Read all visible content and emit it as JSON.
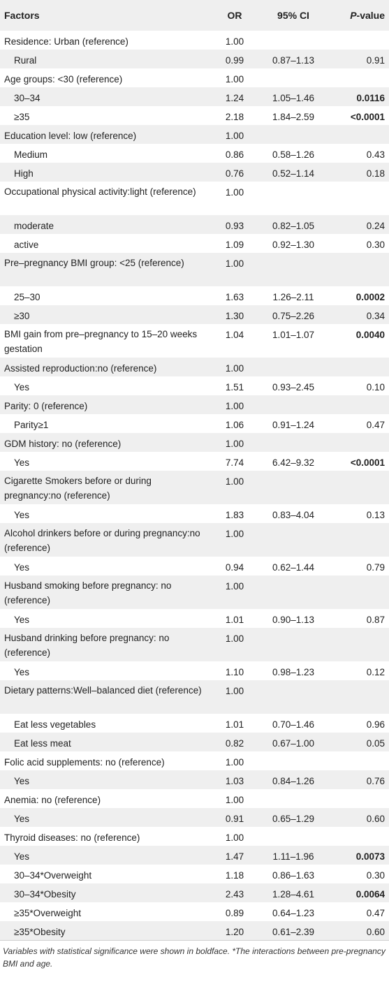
{
  "header": {
    "factors": "Factors",
    "or": "OR",
    "ci": "95% CI",
    "p_italic": "P",
    "p_rest": "-value"
  },
  "rows": [
    {
      "f": "Residence: Urban (reference)",
      "or": "1.00",
      "ci": "",
      "p": "",
      "sub": false,
      "bold": false
    },
    {
      "f": "Rural",
      "or": "0.99",
      "ci": "0.87–1.13",
      "p": "0.91",
      "sub": true,
      "bold": false
    },
    {
      "f": "Age groups: <30 (reference)",
      "or": "1.00",
      "ci": "",
      "p": "",
      "sub": false,
      "bold": false
    },
    {
      "f": "30–34",
      "or": "1.24",
      "ci": "1.05–1.46",
      "p": "0.0116",
      "sub": true,
      "bold": true
    },
    {
      "f": "≥35",
      "or": "2.18",
      "ci": "1.84–2.59",
      "p": "<0.0001",
      "sub": true,
      "bold": true
    },
    {
      "f": "Education level: low (reference)",
      "or": "1.00",
      "ci": "",
      "p": "",
      "sub": false,
      "bold": false
    },
    {
      "f": "Medium",
      "or": "0.86",
      "ci": "0.58–1.26",
      "p": "0.43",
      "sub": true,
      "bold": false
    },
    {
      "f": "High",
      "or": "0.76",
      "ci": "0.52–1.14",
      "p": "0.18",
      "sub": true,
      "bold": false
    },
    {
      "f": "Occupational physical activity:light (reference)",
      "or": "1.00",
      "ci": "",
      "p": "",
      "sub": false,
      "bold": false,
      "tall": true
    },
    {
      "f": "moderate",
      "or": "0.93",
      "ci": "0.82–1.05",
      "p": "0.24",
      "sub": true,
      "bold": false
    },
    {
      "f": "active",
      "or": "1.09",
      "ci": "0.92–1.30",
      "p": "0.30",
      "sub": true,
      "bold": false
    },
    {
      "f": "Pre–pregnancy BMI group: <25 (reference)",
      "or": "1.00",
      "ci": "",
      "p": "",
      "sub": false,
      "bold": false,
      "tall": true
    },
    {
      "f": "25–30",
      "or": "1.63",
      "ci": "1.26–2.11",
      "p": "0.0002",
      "sub": true,
      "bold": true
    },
    {
      "f": "≥30",
      "or": "1.30",
      "ci": "0.75–2.26",
      "p": "0.34",
      "sub": true,
      "bold": false
    },
    {
      "f": "BMI gain from pre–pregnancy to 15–20 weeks gestation",
      "or": "1.04",
      "ci": "1.01–1.07",
      "p": "0.0040",
      "sub": false,
      "bold": true,
      "tall": true
    },
    {
      "f": "Assisted reproduction:no (reference)",
      "or": "1.00",
      "ci": "",
      "p": "",
      "sub": false,
      "bold": false
    },
    {
      "f": "Yes",
      "or": "1.51",
      "ci": "0.93–2.45",
      "p": "0.10",
      "sub": true,
      "bold": false
    },
    {
      "f": "Parity: 0 (reference)",
      "or": "1.00",
      "ci": "",
      "p": "",
      "sub": false,
      "bold": false
    },
    {
      "f": "Parity≥1",
      "or": "1.06",
      "ci": "0.91–1.24",
      "p": "0.47",
      "sub": true,
      "bold": false
    },
    {
      "f": "GDM history: no (reference)",
      "or": "1.00",
      "ci": "",
      "p": "",
      "sub": false,
      "bold": false
    },
    {
      "f": "Yes",
      "or": "7.74",
      "ci": "6.42–9.32",
      "p": "<0.0001",
      "sub": true,
      "bold": true
    },
    {
      "f": "Cigarette Smokers before or during pregnancy:no (reference)",
      "or": "1.00",
      "ci": "",
      "p": "",
      "sub": false,
      "bold": false,
      "tall": true
    },
    {
      "f": "Yes",
      "or": "1.83",
      "ci": "0.83–4.04",
      "p": "0.13",
      "sub": true,
      "bold": false
    },
    {
      "f": "Alcohol drinkers before or during pregnancy:no (reference)",
      "or": "1.00",
      "ci": "",
      "p": "",
      "sub": false,
      "bold": false,
      "tall": true
    },
    {
      "f": "Yes",
      "or": "0.94",
      "ci": "0.62–1.44",
      "p": "0.79",
      "sub": true,
      "bold": false
    },
    {
      "f": "Husband smoking before pregnancy: no (reference)",
      "or": "1.00",
      "ci": "",
      "p": "",
      "sub": false,
      "bold": false,
      "tall": true
    },
    {
      "f": "Yes",
      "or": "1.01",
      "ci": "0.90–1.13",
      "p": "0.87",
      "sub": true,
      "bold": false
    },
    {
      "f": "Husband drinking before pregnancy: no (reference)",
      "or": "1.00",
      "ci": "",
      "p": "",
      "sub": false,
      "bold": false,
      "tall": true
    },
    {
      "f": "Yes",
      "or": "1.10",
      "ci": "0.98–1.23",
      "p": "0.12",
      "sub": true,
      "bold": false
    },
    {
      "f": "Dietary patterns:Well–balanced diet (reference)",
      "or": "1.00",
      "ci": "",
      "p": "",
      "sub": false,
      "bold": false,
      "tall": true
    },
    {
      "f": "Eat less vegetables",
      "or": "1.01",
      "ci": "0.70–1.46",
      "p": "0.96",
      "sub": true,
      "bold": false
    },
    {
      "f": "Eat less meat",
      "or": "0.82",
      "ci": "0.67–1.00",
      "p": "0.05",
      "sub": true,
      "bold": false
    },
    {
      "f": "Folic acid supplements: no (reference)",
      "or": "1.00",
      "ci": "",
      "p": "",
      "sub": false,
      "bold": false
    },
    {
      "f": "Yes",
      "or": "1.03",
      "ci": "0.84–1.26",
      "p": "0.76",
      "sub": true,
      "bold": false
    },
    {
      "f": "Anemia: no (reference)",
      "or": "1.00",
      "ci": "",
      "p": "",
      "sub": false,
      "bold": false
    },
    {
      "f": "Yes",
      "or": "0.91",
      "ci": "0.65–1.29",
      "p": "0.60",
      "sub": true,
      "bold": false
    },
    {
      "f": "Thyroid diseases: no (reference)",
      "or": "1.00",
      "ci": "",
      "p": "",
      "sub": false,
      "bold": false
    },
    {
      "f": "Yes",
      "or": "1.47",
      "ci": "1.11–1.96",
      "p": "0.0073",
      "sub": true,
      "bold": true
    },
    {
      "f": "30–34*Overweight",
      "or": "1.18",
      "ci": "0.86–1.63",
      "p": "0.30",
      "sub": true,
      "bold": false
    },
    {
      "f": "30–34*Obesity",
      "or": "2.43",
      "ci": "1.28–4.61",
      "p": "0.0064",
      "sub": true,
      "bold": true
    },
    {
      "f": "≥35*Overweight",
      "or": "0.89",
      "ci": "0.64–1.23",
      "p": "0.47",
      "sub": true,
      "bold": false
    },
    {
      "f": "≥35*Obesity",
      "or": "1.20",
      "ci": "0.61–2.39",
      "p": "0.60",
      "sub": true,
      "bold": false
    }
  ],
  "footnote": "Variables with statistical significance were shown in boldface. *The interactions between pre-pregnancy BMI and age."
}
